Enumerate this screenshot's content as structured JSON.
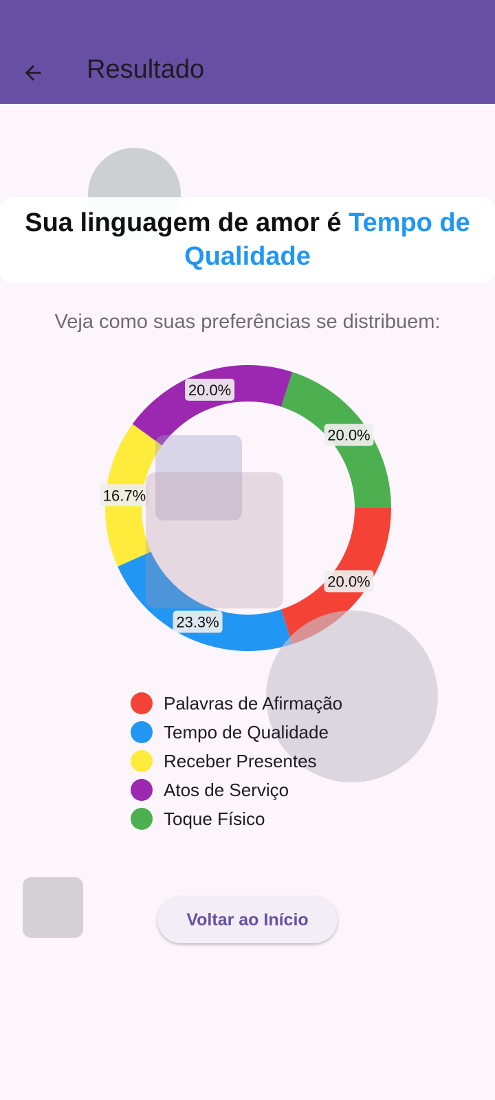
{
  "appbar": {
    "title": "Resultado",
    "color": "#6750a4",
    "back_icon": "arrow-left-icon"
  },
  "headline": {
    "prefix": "Sua linguagem de amor é ",
    "highlight": "Tempo de Qualidade",
    "highlight_color": "#2196f3"
  },
  "subtitle": "Veja como suas preferências se distribuem:",
  "chart_data": {
    "type": "pie",
    "donut": true,
    "slices": [
      {
        "name": "Palavras de Afirmação",
        "value": 20.0,
        "label": "20.0%",
        "color": "#f44336"
      },
      {
        "name": "Tempo de Qualidade",
        "value": 23.3,
        "label": "23.3%",
        "color": "#2196f3"
      },
      {
        "name": "Receber Presentes",
        "value": 16.7,
        "label": "16.7%",
        "color": "#ffeb3b"
      },
      {
        "name": "Atos de Serviço",
        "value": 20.0,
        "label": "20.0%",
        "color": "#9c27b0"
      },
      {
        "name": "Toque Físico",
        "value": 20.0,
        "label": "20.0%",
        "color": "#4caf50"
      }
    ],
    "legend_position": "bottom"
  },
  "legend": [
    {
      "label": "Palavras de Afirmação",
      "color": "#f44336"
    },
    {
      "label": "Tempo de Qualidade",
      "color": "#2196f3"
    },
    {
      "label": "Receber Presentes",
      "color": "#ffeb3b"
    },
    {
      "label": "Atos de Serviço",
      "color": "#9c27b0"
    },
    {
      "label": "Toque Físico",
      "color": "#4caf50"
    }
  ],
  "home_button": {
    "label": "Voltar ao Início"
  }
}
